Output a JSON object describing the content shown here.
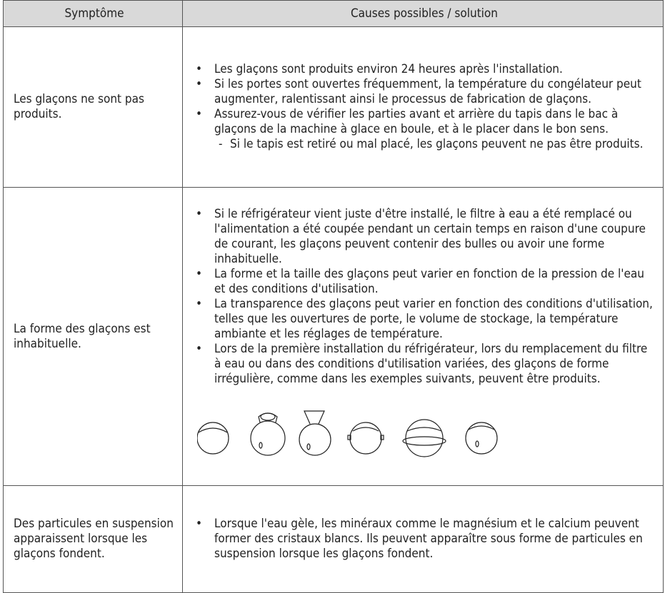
{
  "table": {
    "header": [
      "Symptôme",
      "Causes possibles / solution"
    ],
    "rows": [
      {
        "symptom": "Les glaçons ne sont pas produits.",
        "causes": [
          {
            "text": "Les glaçons sont produits environ 24 heures après l'installation."
          },
          {
            "text": "Si les portes sont ouvertes fréquemment, la température du congélateur peut augmenter, ralentissant ainsi le processus de fabrication de glaçons."
          },
          {
            "text": "Assurez-vous de vérifier les parties avant et arrière du tapis dans le bac à glaçons de la machine à glace en boule, et à le placer dans le bon sens.",
            "sub": [
              "Si le tapis est retiré ou mal placé, les glaçons peuvent ne pas être produits."
            ]
          }
        ]
      },
      {
        "symptom": "La forme des glaçons est inhabituelle.",
        "causes": [
          {
            "text": "Si le réfrigérateur vient juste d'être installé, le filtre à eau a été remplacé ou l'alimentation a été coupée pendant un certain temps en raison d'une coupure de courant, les glaçons peuvent contenir des bulles ou avoir une forme inhabituelle."
          },
          {
            "text": "La forme et la taille des glaçons peut varier en fonction de la pression de l'eau et des conditions d'utilisation."
          },
          {
            "text": "La transparence des glaçons peut varier en fonction des conditions d'utilisation, telles que les ouvertures de porte, le volume de stockage, la température ambiante et les réglages de température."
          },
          {
            "text": "Lors de la première installation du réfrigérateur, lors du remplacement du filtre à eau ou dans des conditions d'utilisation variées, des glaçons de forme irrégulière, comme dans les exemples suivants, peuvent être produits."
          }
        ]
      },
      {
        "symptom": "Des particules en suspension apparaissent lorsque les glaçons fondent.",
        "causes": [
          {
            "text": "Lorsque l'eau gèle, les minéraux comme le magnésium et le calcium peuvent former des cristaux blancs. Ils peuvent apparaître sous forme de particules en suspension lorsque les glaçons fondent."
          }
        ]
      }
    ]
  }
}
